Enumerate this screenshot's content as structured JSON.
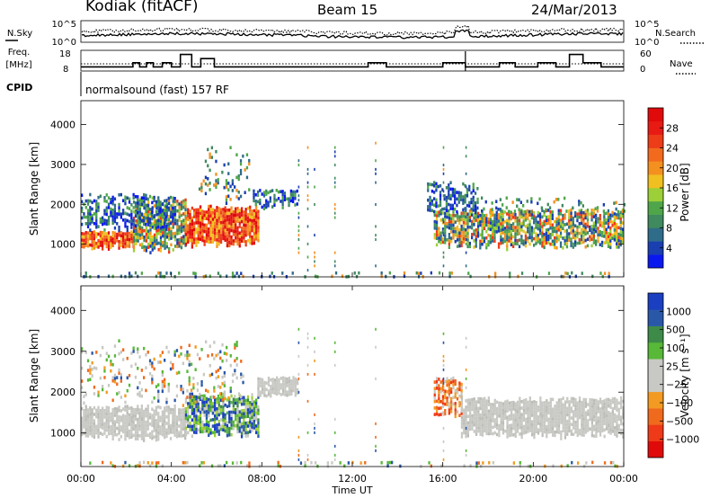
{
  "header": {
    "radar": "Kodiak (fitACF)",
    "beam": "Beam 15",
    "date": "24/Mar/2013"
  },
  "summary": {
    "nsky_label": "N.Sky",
    "nsearch_label": "N.Search",
    "noise_ticks": [
      "10^5",
      "10^0"
    ],
    "freq_label": "Freq.",
    "freq_unit": "[MHz]",
    "freq_ticks": [
      "18",
      "8"
    ],
    "nave_label": "Nave",
    "nave_ticks": [
      "60",
      "0"
    ],
    "cpid_label": "CPID",
    "cpid_text": "normalsound (fast) 157 RF"
  },
  "chart_data": {
    "type": "heatmap",
    "x_ticks": [
      "00:00",
      "04:00",
      "08:00",
      "12:00",
      "16:00",
      "20:00",
      "00:00"
    ],
    "x_hours": [
      0,
      4,
      8,
      12,
      16,
      20,
      24
    ],
    "xlabel": "Time UT",
    "xlim_hours": [
      0,
      24
    ],
    "panels": [
      {
        "name": "power",
        "ylabel": "Slant Range [km]",
        "yticks": [
          1000,
          2000,
          3000,
          4000
        ],
        "ylim": [
          180,
          4600
        ],
        "colorbar": {
          "label": "Power [dB]",
          "ticks": [
            "28",
            "24",
            "20",
            "16",
            "12",
            "8",
            "4"
          ],
          "colors": [
            "#0a18f0",
            "#1a3fb0",
            "#2f6c8a",
            "#3f8a5e",
            "#4fa64a",
            "#9ccf38",
            "#f0c020",
            "#f49020",
            "#f26a1e",
            "#ec3c18",
            "#e81a14",
            "#e00a0a"
          ]
        },
        "regions": [
          {
            "t0": 0.0,
            "t1": 2.3,
            "r0": 900,
            "r1": 1350,
            "class": "strong"
          },
          {
            "t0": 2.3,
            "t1": 4.6,
            "r0": 800,
            "r1": 2200,
            "class": "mixed"
          },
          {
            "t0": 4.6,
            "t1": 7.8,
            "r0": 950,
            "r1": 2000,
            "class": "strong"
          },
          {
            "t0": 0.0,
            "t1": 4.2,
            "r0": 1350,
            "r1": 2300,
            "class": "weak"
          },
          {
            "t0": 5.2,
            "t1": 7.4,
            "r0": 2000,
            "r1": 3500,
            "class": "sparse"
          },
          {
            "t0": 7.6,
            "t1": 9.6,
            "r0": 1900,
            "r1": 2400,
            "class": "weak"
          },
          {
            "t0": 15.6,
            "t1": 24.0,
            "r0": 900,
            "r1": 1900,
            "class": "mixed"
          },
          {
            "t0": 15.3,
            "t1": 17.5,
            "r0": 1800,
            "r1": 2600,
            "class": "weak"
          },
          {
            "t0": 17.5,
            "t1": 24.0,
            "r0": 1800,
            "r1": 2200,
            "class": "sparse"
          },
          {
            "t0": 0.0,
            "t1": 24.0,
            "r0": 200,
            "r1": 320,
            "class": "sparse"
          }
        ]
      },
      {
        "name": "velocity",
        "ylabel": "Slant Range [km]",
        "yticks": [
          1000,
          2000,
          3000,
          4000
        ],
        "ylim": [
          180,
          4600
        ],
        "colorbar": {
          "label": "Velocity [m s⁻¹]",
          "ticks": [
            "1000",
            "500",
            "100",
            "25",
            "−25",
            "−100",
            "−500",
            "−1000"
          ],
          "colors": [
            "#e00a0a",
            "#ee3a18",
            "#f06a1e",
            "#f29a22",
            "#c8c8c4",
            "#c8c8c4",
            "#58b838",
            "#3e8a48",
            "#2a58a8",
            "#1a3fc0"
          ]
        },
        "regions": [
          {
            "t0": 0.0,
            "t1": 4.6,
            "r0": 850,
            "r1": 1700,
            "class": "ground"
          },
          {
            "t0": 4.6,
            "t1": 7.8,
            "r0": 900,
            "r1": 2000,
            "class": "iono"
          },
          {
            "t0": 7.8,
            "t1": 9.6,
            "r0": 1900,
            "r1": 2400,
            "class": "ground"
          },
          {
            "t0": 15.6,
            "t1": 16.8,
            "r0": 1400,
            "r1": 2400,
            "class": "orange"
          },
          {
            "t0": 16.8,
            "t1": 24.0,
            "r0": 900,
            "r1": 1900,
            "class": "ground"
          },
          {
            "t0": 0.0,
            "t1": 7.2,
            "r0": 1700,
            "r1": 3300,
            "class": "sparse"
          },
          {
            "t0": 0.0,
            "t1": 24.0,
            "r0": 200,
            "r1": 320,
            "class": "sparse"
          }
        ]
      }
    ]
  }
}
